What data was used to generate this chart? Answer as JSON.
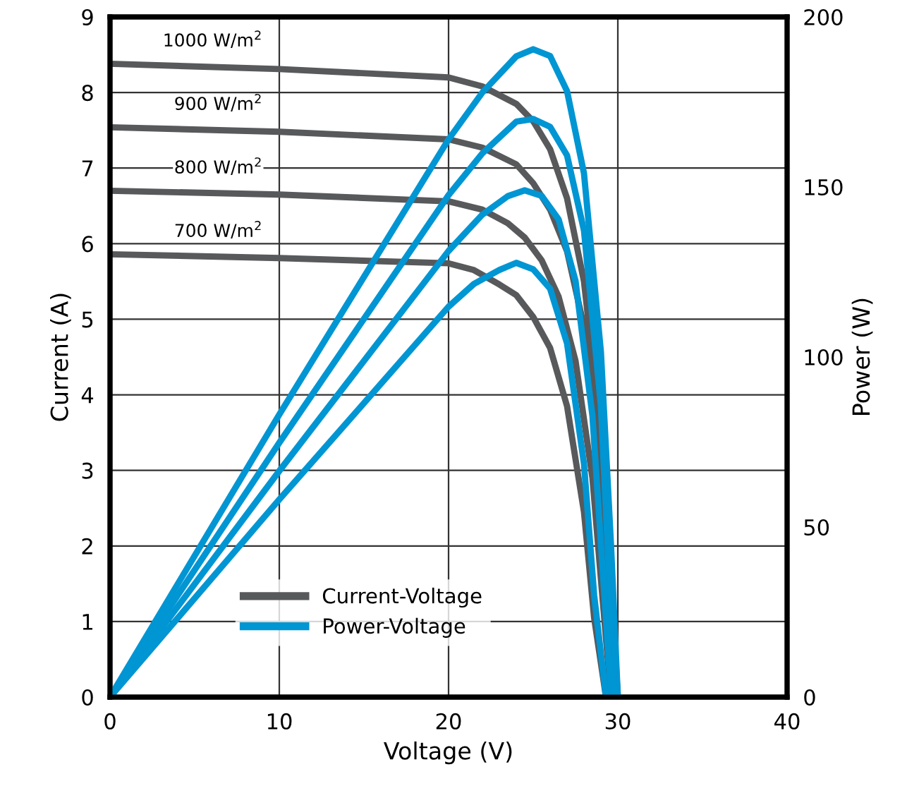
{
  "chart_data": {
    "type": "line",
    "xlabel": "Voltage (V)",
    "ylabel": "Current (A)",
    "y2label": "Power (W)",
    "xlim": [
      0,
      40
    ],
    "xticks": [
      0,
      10,
      20,
      30,
      40
    ],
    "ylim": [
      0,
      9
    ],
    "yticks": [
      0,
      1,
      2,
      3,
      4,
      5,
      6,
      7,
      8,
      9
    ],
    "y2lim": [
      0,
      200
    ],
    "y2ticks": [
      0,
      50,
      100,
      150,
      200
    ],
    "grid": true,
    "legend": "bottom left",
    "marker": "none",
    "line_style": "solid",
    "series": [
      {
        "name": "Current-Voltage",
        "color": "#58595b",
        "x": [
          0,
          10,
          20,
          22,
          24,
          25,
          26,
          27,
          28,
          29,
          29.6,
          30
        ],
        "values": [
          8.38,
          8.31,
          8.2,
          8.08,
          7.85,
          7.62,
          7.25,
          6.6,
          5.5,
          3.5,
          1.5,
          0
        ]
      },
      {
        "color": "#58595b",
        "x": [
          0,
          10,
          20,
          22,
          24,
          25,
          26,
          27,
          28,
          29,
          29.4,
          29.8
        ],
        "values": [
          7.54,
          7.48,
          7.38,
          7.27,
          7.05,
          6.8,
          6.45,
          5.9,
          4.9,
          2.95,
          1.5,
          0
        ]
      },
      {
        "color": "#58595b",
        "x": [
          0,
          10,
          20,
          22,
          23.5,
          24.5,
          25.5,
          26.5,
          27.5,
          28.5,
          29.1,
          29.6
        ],
        "values": [
          6.7,
          6.65,
          6.56,
          6.45,
          6.27,
          6.08,
          5.78,
          5.3,
          4.45,
          2.9,
          1.3,
          0
        ]
      },
      {
        "color": "#58595b",
        "x": [
          0,
          10,
          20,
          21.5,
          23,
          24,
          25,
          26,
          27,
          28,
          28.6,
          29.3
        ],
        "values": [
          5.86,
          5.81,
          5.74,
          5.65,
          5.46,
          5.32,
          5.03,
          4.62,
          3.85,
          2.45,
          1.05,
          0
        ]
      },
      {
        "name": "Power-Voltage",
        "color": "#0095d3",
        "axis": "y2",
        "x": [
          0,
          10,
          20,
          22,
          24,
          25,
          26,
          27,
          28,
          29,
          29.6,
          30
        ],
        "values": [
          0,
          83.1,
          164.0,
          177.8,
          188.4,
          190.5,
          188.5,
          178.2,
          154.0,
          101.5,
          44.4,
          0
        ]
      },
      {
        "color": "#0095d3",
        "axis": "y2",
        "x": [
          0,
          10,
          20,
          22,
          24,
          25,
          26,
          27,
          28,
          29,
          29.4,
          29.8
        ],
        "values": [
          0,
          74.8,
          147.6,
          159.9,
          169.2,
          170.0,
          167.7,
          159.3,
          137.2,
          85.6,
          44.1,
          0
        ]
      },
      {
        "color": "#0095d3",
        "axis": "y2",
        "x": [
          0,
          10,
          20,
          22,
          23.5,
          24.5,
          25.5,
          26.5,
          27.5,
          28.5,
          29.1,
          29.6
        ],
        "values": [
          0,
          66.5,
          131.2,
          141.9,
          147.3,
          149.0,
          147.4,
          140.5,
          122.4,
          82.7,
          37.8,
          0
        ]
      },
      {
        "color": "#0095d3",
        "axis": "y2",
        "x": [
          0,
          10,
          20,
          21.5,
          23,
          24,
          25,
          26,
          27,
          28,
          28.6,
          29.3
        ],
        "values": [
          0,
          58.1,
          114.8,
          121.5,
          125.6,
          127.7,
          125.8,
          120.1,
          104.0,
          68.6,
          30.0,
          0
        ]
      }
    ],
    "annotations": [
      "1000 W/m$^{2}$",
      "900 W/m$^{2}$",
      "800 W/m$^{2}$",
      "700 W/m$^{2}$"
    ]
  }
}
